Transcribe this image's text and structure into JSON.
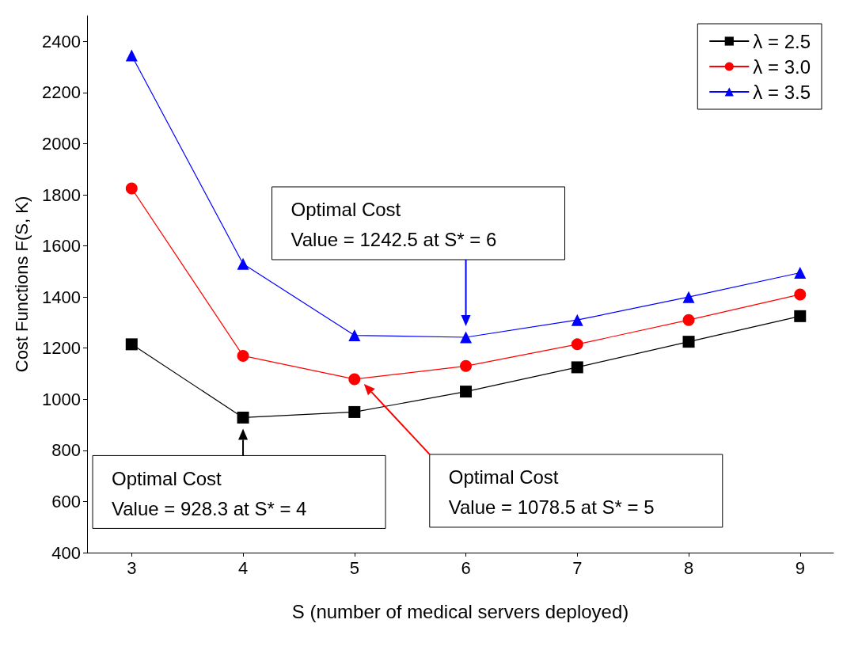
{
  "chart_data": {
    "type": "line",
    "xlabel": "S (number of medical servers deployed)",
    "ylabel": "Cost Functions F(S, K)",
    "x": [
      3,
      4,
      5,
      6,
      7,
      8,
      9
    ],
    "series": [
      {
        "name": "λ = 2.5",
        "color": "#000000",
        "marker": "square",
        "values": [
          1215,
          928.3,
          950,
          1030,
          1125,
          1225,
          1325
        ]
      },
      {
        "name": "λ = 3.0",
        "color": "#ff0000",
        "marker": "circle",
        "values": [
          1825,
          1170,
          1078.5,
          1130,
          1215,
          1310,
          1410
        ]
      },
      {
        "name": "λ = 3.5",
        "color": "#0000ff",
        "marker": "triangle",
        "values": [
          2345,
          1530,
          1250,
          1242.5,
          1310,
          1400,
          1495
        ]
      }
    ],
    "xlim": [
      2.6,
      9.3
    ],
    "xticks": [
      3,
      4,
      5,
      6,
      7,
      8,
      9
    ],
    "ylim": [
      400,
      2500
    ],
    "yticks": [
      400,
      600,
      800,
      1000,
      1200,
      1400,
      1600,
      1800,
      2000,
      2200,
      2400
    ],
    "legend": "top right",
    "grid": false,
    "line_style": "solid",
    "annotations": [
      "Optimal Cost\nValue = 928.3 at S* = 4",
      "Optimal Cost\nValue = 1078.5 at S* = 5",
      "Optimal Cost\nValue = 1242.5 at S* = 6"
    ]
  }
}
